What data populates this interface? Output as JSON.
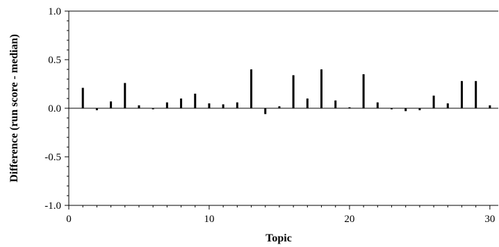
{
  "chart_data": {
    "type": "bar",
    "title": "",
    "xlabel": "Topic",
    "ylabel": "Difference (run score - median)",
    "xlim": [
      0,
      30.6
    ],
    "ylim": [
      -1.0,
      1.0
    ],
    "x_ticks": [
      0,
      10,
      20,
      30
    ],
    "x_tick_labels": [
      "0",
      "10",
      "20",
      "30"
    ],
    "y_ticks": [
      1.0,
      0.5,
      0.0,
      -0.5,
      -1.0
    ],
    "y_tick_labels": [
      "1.0",
      "0.5",
      "0.0",
      "-0.5",
      "-1.0"
    ],
    "grid": false,
    "zero_line": true,
    "bar_color": "#000000",
    "x": [
      1,
      2,
      3,
      4,
      5,
      6,
      7,
      8,
      9,
      10,
      11,
      12,
      13,
      14,
      15,
      16,
      17,
      18,
      19,
      20,
      21,
      22,
      23,
      24,
      25,
      26,
      27,
      28,
      29,
      30
    ],
    "values": [
      0.21,
      -0.02,
      0.07,
      0.26,
      0.03,
      -0.01,
      0.06,
      0.1,
      0.15,
      0.05,
      0.04,
      0.06,
      0.4,
      -0.06,
      0.02,
      0.34,
      0.1,
      0.4,
      0.08,
      0.01,
      0.35,
      0.06,
      -0.01,
      -0.03,
      -0.02,
      0.13,
      0.05,
      0.28,
      0.28,
      0.03
    ]
  }
}
